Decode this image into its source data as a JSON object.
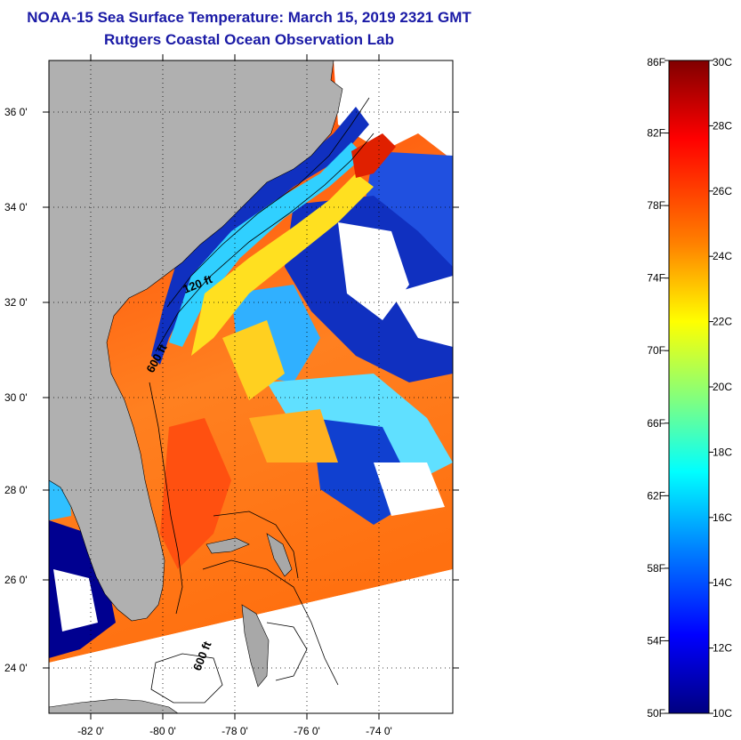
{
  "title": {
    "line1": "NOAA-15 Sea Surface Temperature:  March 15, 2019 2321 GMT",
    "line2": "Rutgers Coastal Ocean Observation Lab"
  },
  "map": {
    "lat_ticks": [
      "36 0'",
      "34 0'",
      "32 0'",
      "30 0'",
      "28 0'",
      "26 0'",
      "24 0'"
    ],
    "lon_ticks": [
      "-82 0'",
      "-80 0'",
      "-78 0'",
      "-76 0'",
      "-74 0'"
    ],
    "contour_labels": [
      "120 ft",
      "600 ft",
      "600 ft"
    ],
    "colors": {
      "land": "#b0b0b0",
      "no_data": "#ffffff",
      "border": "#000000"
    }
  },
  "colorbar": {
    "fahrenheit_labels": [
      "86F",
      "82F",
      "78F",
      "74F",
      "70F",
      "66F",
      "62F",
      "58F",
      "54F",
      "50F"
    ],
    "celsius_labels": [
      "30C",
      "28C",
      "26C",
      "24C",
      "22C",
      "20C",
      "18C",
      "16C",
      "14C",
      "12C",
      "10C"
    ],
    "range_f": [
      50,
      86
    ],
    "range_c": [
      10,
      30
    ],
    "colormap": [
      "#800000",
      "#ff0000",
      "#ff8000",
      "#ffff00",
      "#80ff80",
      "#00ffff",
      "#0080ff",
      "#0000ff",
      "#000080"
    ]
  }
}
